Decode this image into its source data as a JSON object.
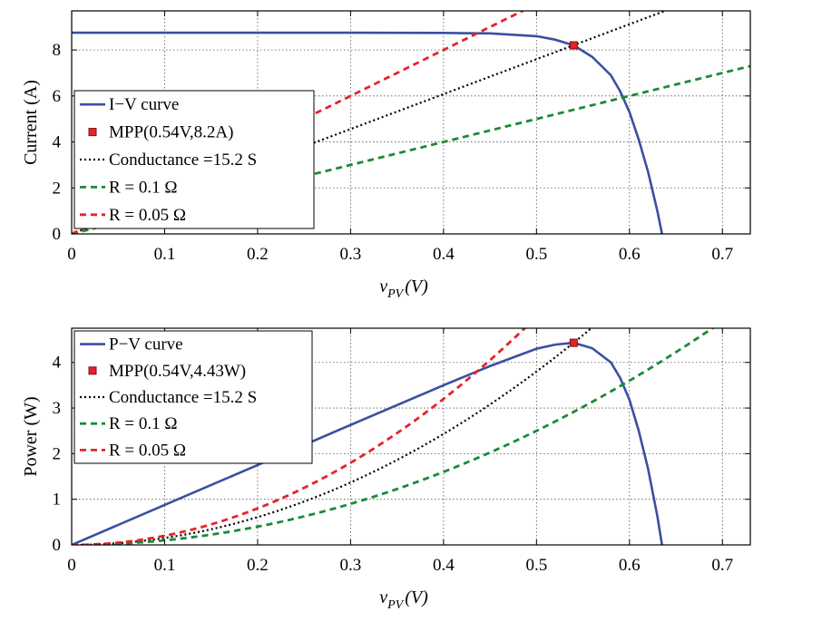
{
  "chart_data": [
    {
      "type": "line",
      "ylabel": "Current (A)",
      "xlabel": "v",
      "xlabel_sub": "PV",
      "xlabel_unit": "(V)",
      "xlim": [
        0,
        0.73
      ],
      "ylim": [
        0,
        9.7
      ],
      "xticks": [
        0,
        0.1,
        0.2,
        0.3,
        0.4,
        0.5,
        0.6,
        0.7
      ],
      "xtick_labels": [
        "0",
        "0.1",
        "0.2",
        "0.3",
        "0.4",
        "0.5",
        "0.6",
        "0.7"
      ],
      "yticks": [
        0,
        2,
        4,
        6,
        8
      ],
      "ytick_labels": [
        "0",
        "2",
        "4",
        "6",
        "8"
      ],
      "grid": true,
      "legend_position": "bottom-left",
      "mpp": {
        "x": 0.54,
        "y": 8.2
      },
      "series": [
        {
          "name": "I−V curve",
          "style": "solid",
          "color": "#3a4fa3",
          "x": [
            0,
            0.1,
            0.2,
            0.3,
            0.4,
            0.45,
            0.5,
            0.52,
            0.54,
            0.56,
            0.58,
            0.59,
            0.6,
            0.61,
            0.62,
            0.63,
            0.635
          ],
          "y": [
            8.75,
            8.75,
            8.75,
            8.75,
            8.74,
            8.72,
            8.6,
            8.45,
            8.2,
            7.7,
            6.9,
            6.2,
            5.3,
            4.1,
            2.7,
            1.0,
            0
          ]
        },
        {
          "name": "MPP(0.54V,8.2A)",
          "style": "marker",
          "color": "#e8222a",
          "x": [
            0.54
          ],
          "y": [
            8.2
          ]
        },
        {
          "name": "Conductance =15.2 S",
          "style": "dotted",
          "color": "#000000",
          "slope": 15.2
        },
        {
          "name": "R = 0.1 Ω",
          "style": "dashed",
          "color": "#1a8a3a",
          "slope": 10
        },
        {
          "name": "R = 0.05 Ω",
          "style": "dashed",
          "color": "#e8222a",
          "slope": 20
        }
      ]
    },
    {
      "type": "line",
      "ylabel": "Power (W)",
      "xlabel": "v",
      "xlabel_sub": "PV",
      "xlabel_unit": "(V)",
      "xlim": [
        0,
        0.73
      ],
      "ylim": [
        0,
        4.75
      ],
      "xticks": [
        0,
        0.1,
        0.2,
        0.3,
        0.4,
        0.5,
        0.6,
        0.7
      ],
      "xtick_labels": [
        "0",
        "0.1",
        "0.2",
        "0.3",
        "0.4",
        "0.5",
        "0.6",
        "0.7"
      ],
      "yticks": [
        0,
        1,
        2,
        3,
        4
      ],
      "ytick_labels": [
        "0",
        "1",
        "2",
        "3",
        "4"
      ],
      "grid": true,
      "legend_position": "top-left",
      "mpp": {
        "x": 0.54,
        "y": 4.43
      },
      "series": [
        {
          "name": "P−V curve",
          "style": "solid",
          "color": "#3a4fa3",
          "x": [
            0,
            0.1,
            0.2,
            0.3,
            0.4,
            0.45,
            0.5,
            0.52,
            0.54,
            0.56,
            0.58,
            0.59,
            0.6,
            0.61,
            0.62,
            0.63,
            0.635
          ],
          "y": [
            0,
            0.875,
            1.75,
            2.63,
            3.5,
            3.92,
            4.3,
            4.39,
            4.43,
            4.31,
            4.0,
            3.66,
            3.18,
            2.5,
            1.67,
            0.63,
            0
          ]
        },
        {
          "name": "MPP(0.54V,4.43W)",
          "style": "marker",
          "color": "#e8222a",
          "x": [
            0.54
          ],
          "y": [
            4.43
          ]
        },
        {
          "name": "Conductance =15.2 S",
          "style": "dotted",
          "color": "#000000",
          "coef": 15.2
        },
        {
          "name": "R = 0.1 Ω",
          "style": "dashed",
          "color": "#1a8a3a",
          "coef": 10
        },
        {
          "name": "R = 0.05 Ω",
          "style": "dashed",
          "color": "#e8222a",
          "coef": 20
        }
      ]
    }
  ]
}
